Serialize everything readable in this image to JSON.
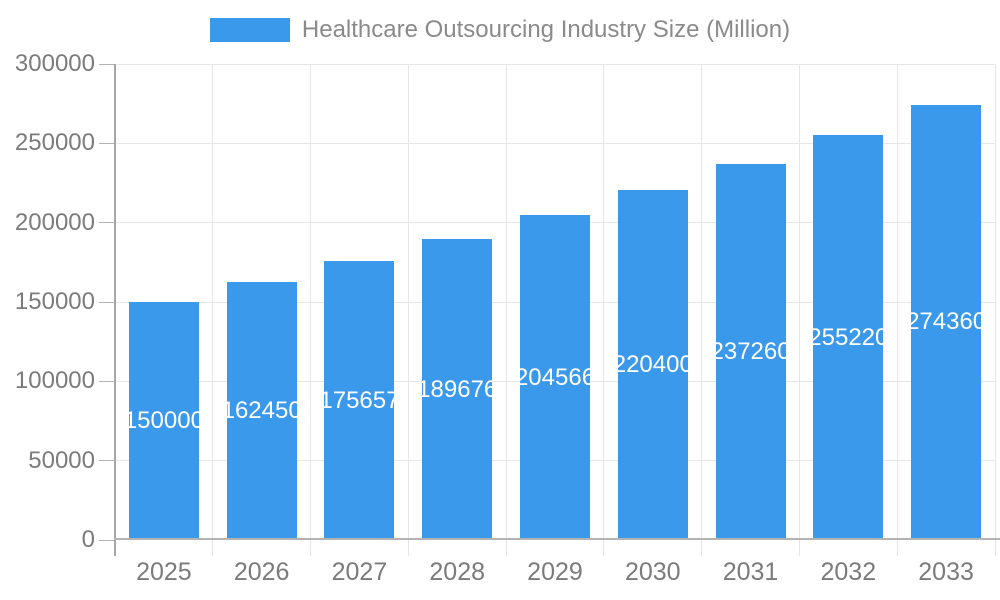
{
  "chart_data": {
    "type": "bar",
    "title": "Healthcare Outsourcing Industry Size (Million)",
    "legend": [
      "Healthcare Outsourcing Industry Size (Million)"
    ],
    "legend_position": "top",
    "categories": [
      "2025",
      "2026",
      "2027",
      "2028",
      "2029",
      "2030",
      "2031",
      "2032",
      "2033"
    ],
    "values": [
      150000,
      162450,
      175657,
      189676,
      204566,
      220400,
      237260,
      255220,
      274360
    ],
    "xlabel": "",
    "ylabel": "",
    "ylim": [
      0,
      300000
    ],
    "yticks": [
      0,
      50000,
      100000,
      150000,
      200000,
      250000,
      300000
    ],
    "grid": true,
    "data_labels": "inside-center",
    "colors": {
      "bar": "#3B99EC",
      "bar_label_text": "#ffffff",
      "axis_text": "#7b7b7b",
      "legend_text": "#8a8a8a",
      "gridline": "#e7e7e7",
      "axis_line": "#b3b3b3",
      "y_axis_line": "#a6a6a6"
    }
  }
}
